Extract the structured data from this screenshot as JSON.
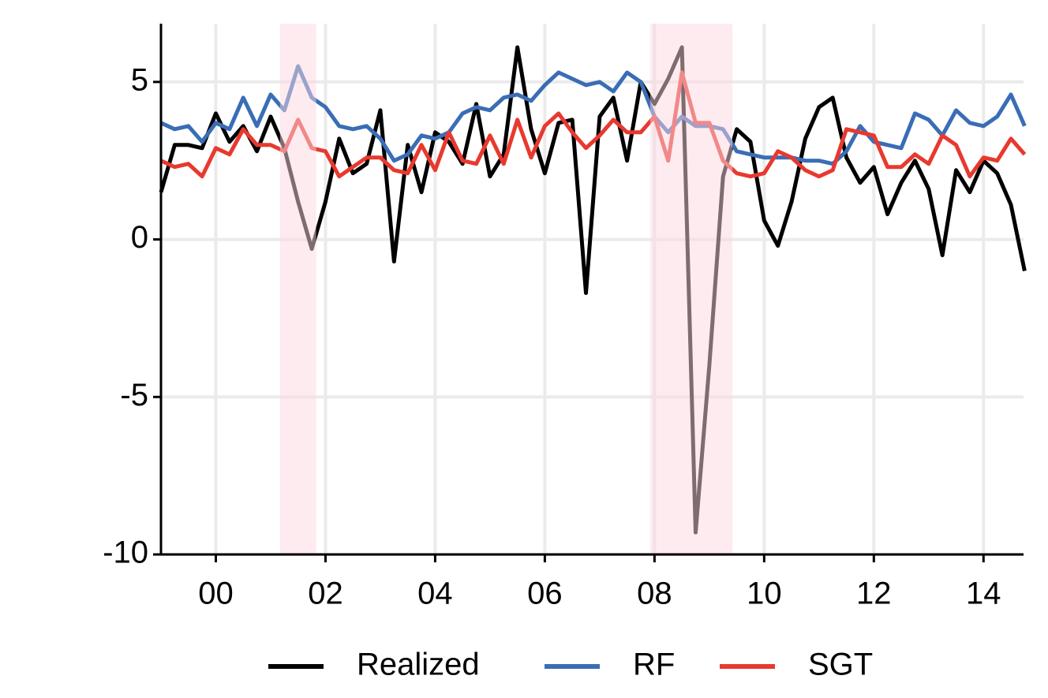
{
  "chart_data": {
    "type": "line",
    "x": [
      1999.0,
      1999.25,
      1999.5,
      1999.75,
      2000.0,
      2000.25,
      2000.5,
      2000.75,
      2001.0,
      2001.25,
      2001.5,
      2001.75,
      2002.0,
      2002.25,
      2002.5,
      2002.75,
      2003.0,
      2003.25,
      2003.5,
      2003.75,
      2004.0,
      2004.25,
      2004.5,
      2004.75,
      2005.0,
      2005.25,
      2005.5,
      2005.75,
      2006.0,
      2006.25,
      2006.5,
      2006.75,
      2007.0,
      2007.25,
      2007.5,
      2007.75,
      2008.0,
      2008.25,
      2008.5,
      2008.75,
      2009.0,
      2009.25,
      2009.5,
      2009.75,
      2010.0,
      2010.25,
      2010.5,
      2010.75,
      2011.0,
      2011.25,
      2011.5,
      2011.75,
      2012.0,
      2012.25,
      2012.5,
      2012.75,
      2013.0,
      2013.25,
      2013.5,
      2013.75,
      2014.0,
      2014.25,
      2014.5,
      2014.75
    ],
    "series": [
      {
        "name": "Realized",
        "color": "#000000",
        "values": [
          1.5,
          3.0,
          3.0,
          2.9,
          4.0,
          3.1,
          3.6,
          2.8,
          3.9,
          2.9,
          1.2,
          -0.3,
          1.2,
          3.2,
          2.1,
          2.4,
          4.1,
          -0.7,
          3.0,
          1.5,
          3.4,
          3.1,
          2.4,
          4.3,
          2.0,
          2.7,
          6.1,
          3.5,
          2.1,
          3.7,
          3.8,
          -1.7,
          3.9,
          4.5,
          2.5,
          5.0,
          4.3,
          5.1,
          6.1,
          -9.3,
          -4.0,
          2.0,
          3.5,
          3.1,
          0.6,
          -0.2,
          1.2,
          3.2,
          4.2,
          4.5,
          2.6,
          1.8,
          2.3,
          0.8,
          1.8,
          2.5,
          1.6,
          -0.5,
          2.2,
          1.5,
          2.5,
          2.1,
          1.1,
          -1.0
        ]
      },
      {
        "name": "RF",
        "color": "#3a6db5",
        "values": [
          3.7,
          3.5,
          3.6,
          3.1,
          3.7,
          3.5,
          4.5,
          3.6,
          4.6,
          4.1,
          5.5,
          4.5,
          4.2,
          3.6,
          3.5,
          3.6,
          3.2,
          2.5,
          2.7,
          3.3,
          3.2,
          3.4,
          4.0,
          4.2,
          4.1,
          4.5,
          4.6,
          4.4,
          4.9,
          5.3,
          5.1,
          4.9,
          5.0,
          4.7,
          5.3,
          5.0,
          3.9,
          3.4,
          3.9,
          3.6,
          3.6,
          3.5,
          2.8,
          2.7,
          2.6,
          2.6,
          2.6,
          2.5,
          2.5,
          2.4,
          2.8,
          3.6,
          3.1,
          3.0,
          2.9,
          4.0,
          3.8,
          3.3,
          4.1,
          3.7,
          3.6,
          3.9,
          4.6,
          3.6
        ]
      },
      {
        "name": "SGT",
        "color": "#e8392f",
        "values": [
          2.5,
          2.3,
          2.4,
          2.0,
          2.9,
          2.7,
          3.5,
          3.0,
          3.0,
          2.8,
          3.8,
          2.9,
          2.8,
          2.0,
          2.3,
          2.6,
          2.6,
          2.2,
          2.1,
          3.0,
          2.2,
          3.4,
          2.5,
          2.4,
          3.3,
          2.4,
          3.8,
          2.6,
          3.6,
          4.0,
          3.4,
          2.9,
          3.3,
          3.8,
          3.4,
          3.4,
          3.9,
          2.5,
          5.3,
          3.7,
          3.7,
          2.5,
          2.1,
          2.0,
          2.1,
          2.8,
          2.6,
          2.2,
          2.0,
          2.2,
          3.5,
          3.4,
          3.3,
          2.3,
          2.3,
          2.7,
          2.4,
          3.3,
          3.0,
          2.0,
          2.6,
          2.5,
          3.2,
          2.7
        ]
      }
    ],
    "shaded": [
      [
        2001.17,
        2001.83
      ],
      [
        2007.92,
        2009.42
      ]
    ],
    "shade_color": "#fcd8e2",
    "xlim": [
      1999.0,
      2014.73
    ],
    "xticks": [
      {
        "value": 2000,
        "label": "00"
      },
      {
        "value": 2002,
        "label": "02"
      },
      {
        "value": 2004,
        "label": "04"
      },
      {
        "value": 2006,
        "label": "06"
      },
      {
        "value": 2008,
        "label": "08"
      },
      {
        "value": 2010,
        "label": "10"
      },
      {
        "value": 2012,
        "label": "12"
      },
      {
        "value": 2014,
        "label": "14"
      }
    ],
    "ylim": [
      -10,
      6.85
    ],
    "yticks": [
      -10,
      -5,
      0,
      5
    ],
    "grid": true,
    "legend": "bottom"
  }
}
